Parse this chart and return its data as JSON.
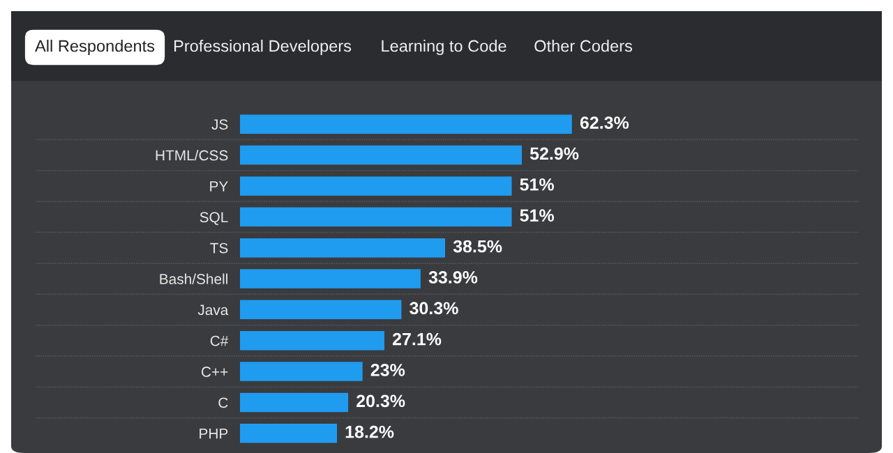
{
  "chart_data": {
    "type": "bar",
    "orientation": "horizontal",
    "categories": [
      "JS",
      "HTML/CSS",
      "PY",
      "SQL",
      "TS",
      "Bash/Shell",
      "Java",
      "C#",
      "C++",
      "C",
      "PHP"
    ],
    "values": [
      62.3,
      52.9,
      51,
      51,
      38.5,
      33.9,
      30.3,
      27.1,
      23,
      20.3,
      18.2
    ],
    "color": "#1f9cf0",
    "value_labels": [
      "62.3%",
      "52.9%",
      "51%",
      "51%",
      "38.5%",
      "33.9%",
      "30.3%",
      "27.1%",
      "23%",
      "20.3%",
      "18.2%"
    ],
    "grid": "y",
    "tick_labels": "y",
    "annotations": [
      "All Respondents",
      "Professional Developers",
      "Learning to Code",
      "Other Coders"
    ]
  }
}
